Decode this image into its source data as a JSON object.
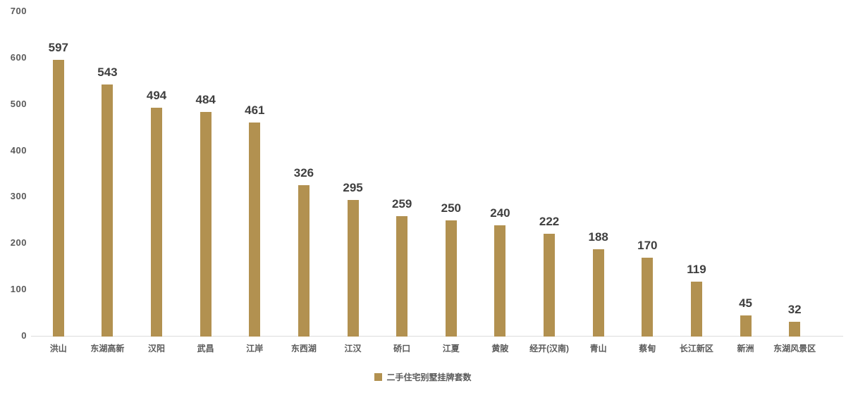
{
  "chart_data": {
    "type": "bar",
    "title": "",
    "categories": [
      "洪山",
      "东湖高新",
      "汉阳",
      "武昌",
      "江岸",
      "东西湖",
      "江汉",
      "硚口",
      "江夏",
      "黄陂",
      "经开(汉南)",
      "青山",
      "蔡甸",
      "长江新区",
      "新洲",
      "东湖风景区"
    ],
    "values": [
      597,
      543,
      494,
      484,
      461,
      326,
      295,
      259,
      250,
      240,
      222,
      188,
      170,
      119,
      45,
      32
    ],
    "series": [
      {
        "name": "二手住宅别墅挂牌套数",
        "values": [
          597,
          543,
          494,
          484,
          461,
          326,
          295,
          259,
          250,
          240,
          222,
          188,
          170,
          119,
          45,
          32
        ]
      }
    ],
    "xlabel": "",
    "ylabel": "",
    "ylim": [
      0,
      700
    ],
    "yticks": [
      0,
      100,
      200,
      300,
      400,
      500,
      600,
      700
    ],
    "grid": false,
    "data_labels": true,
    "legend_position": "bottom-center",
    "bar_color": "#b29150",
    "value_label_color": "#3f3f3f",
    "axis_text_color": "#595959",
    "axis_line_color": "#dcdcdc"
  },
  "legend": {
    "label": "二手住宅别墅挂牌套数",
    "swatch_color": "#b29150"
  }
}
